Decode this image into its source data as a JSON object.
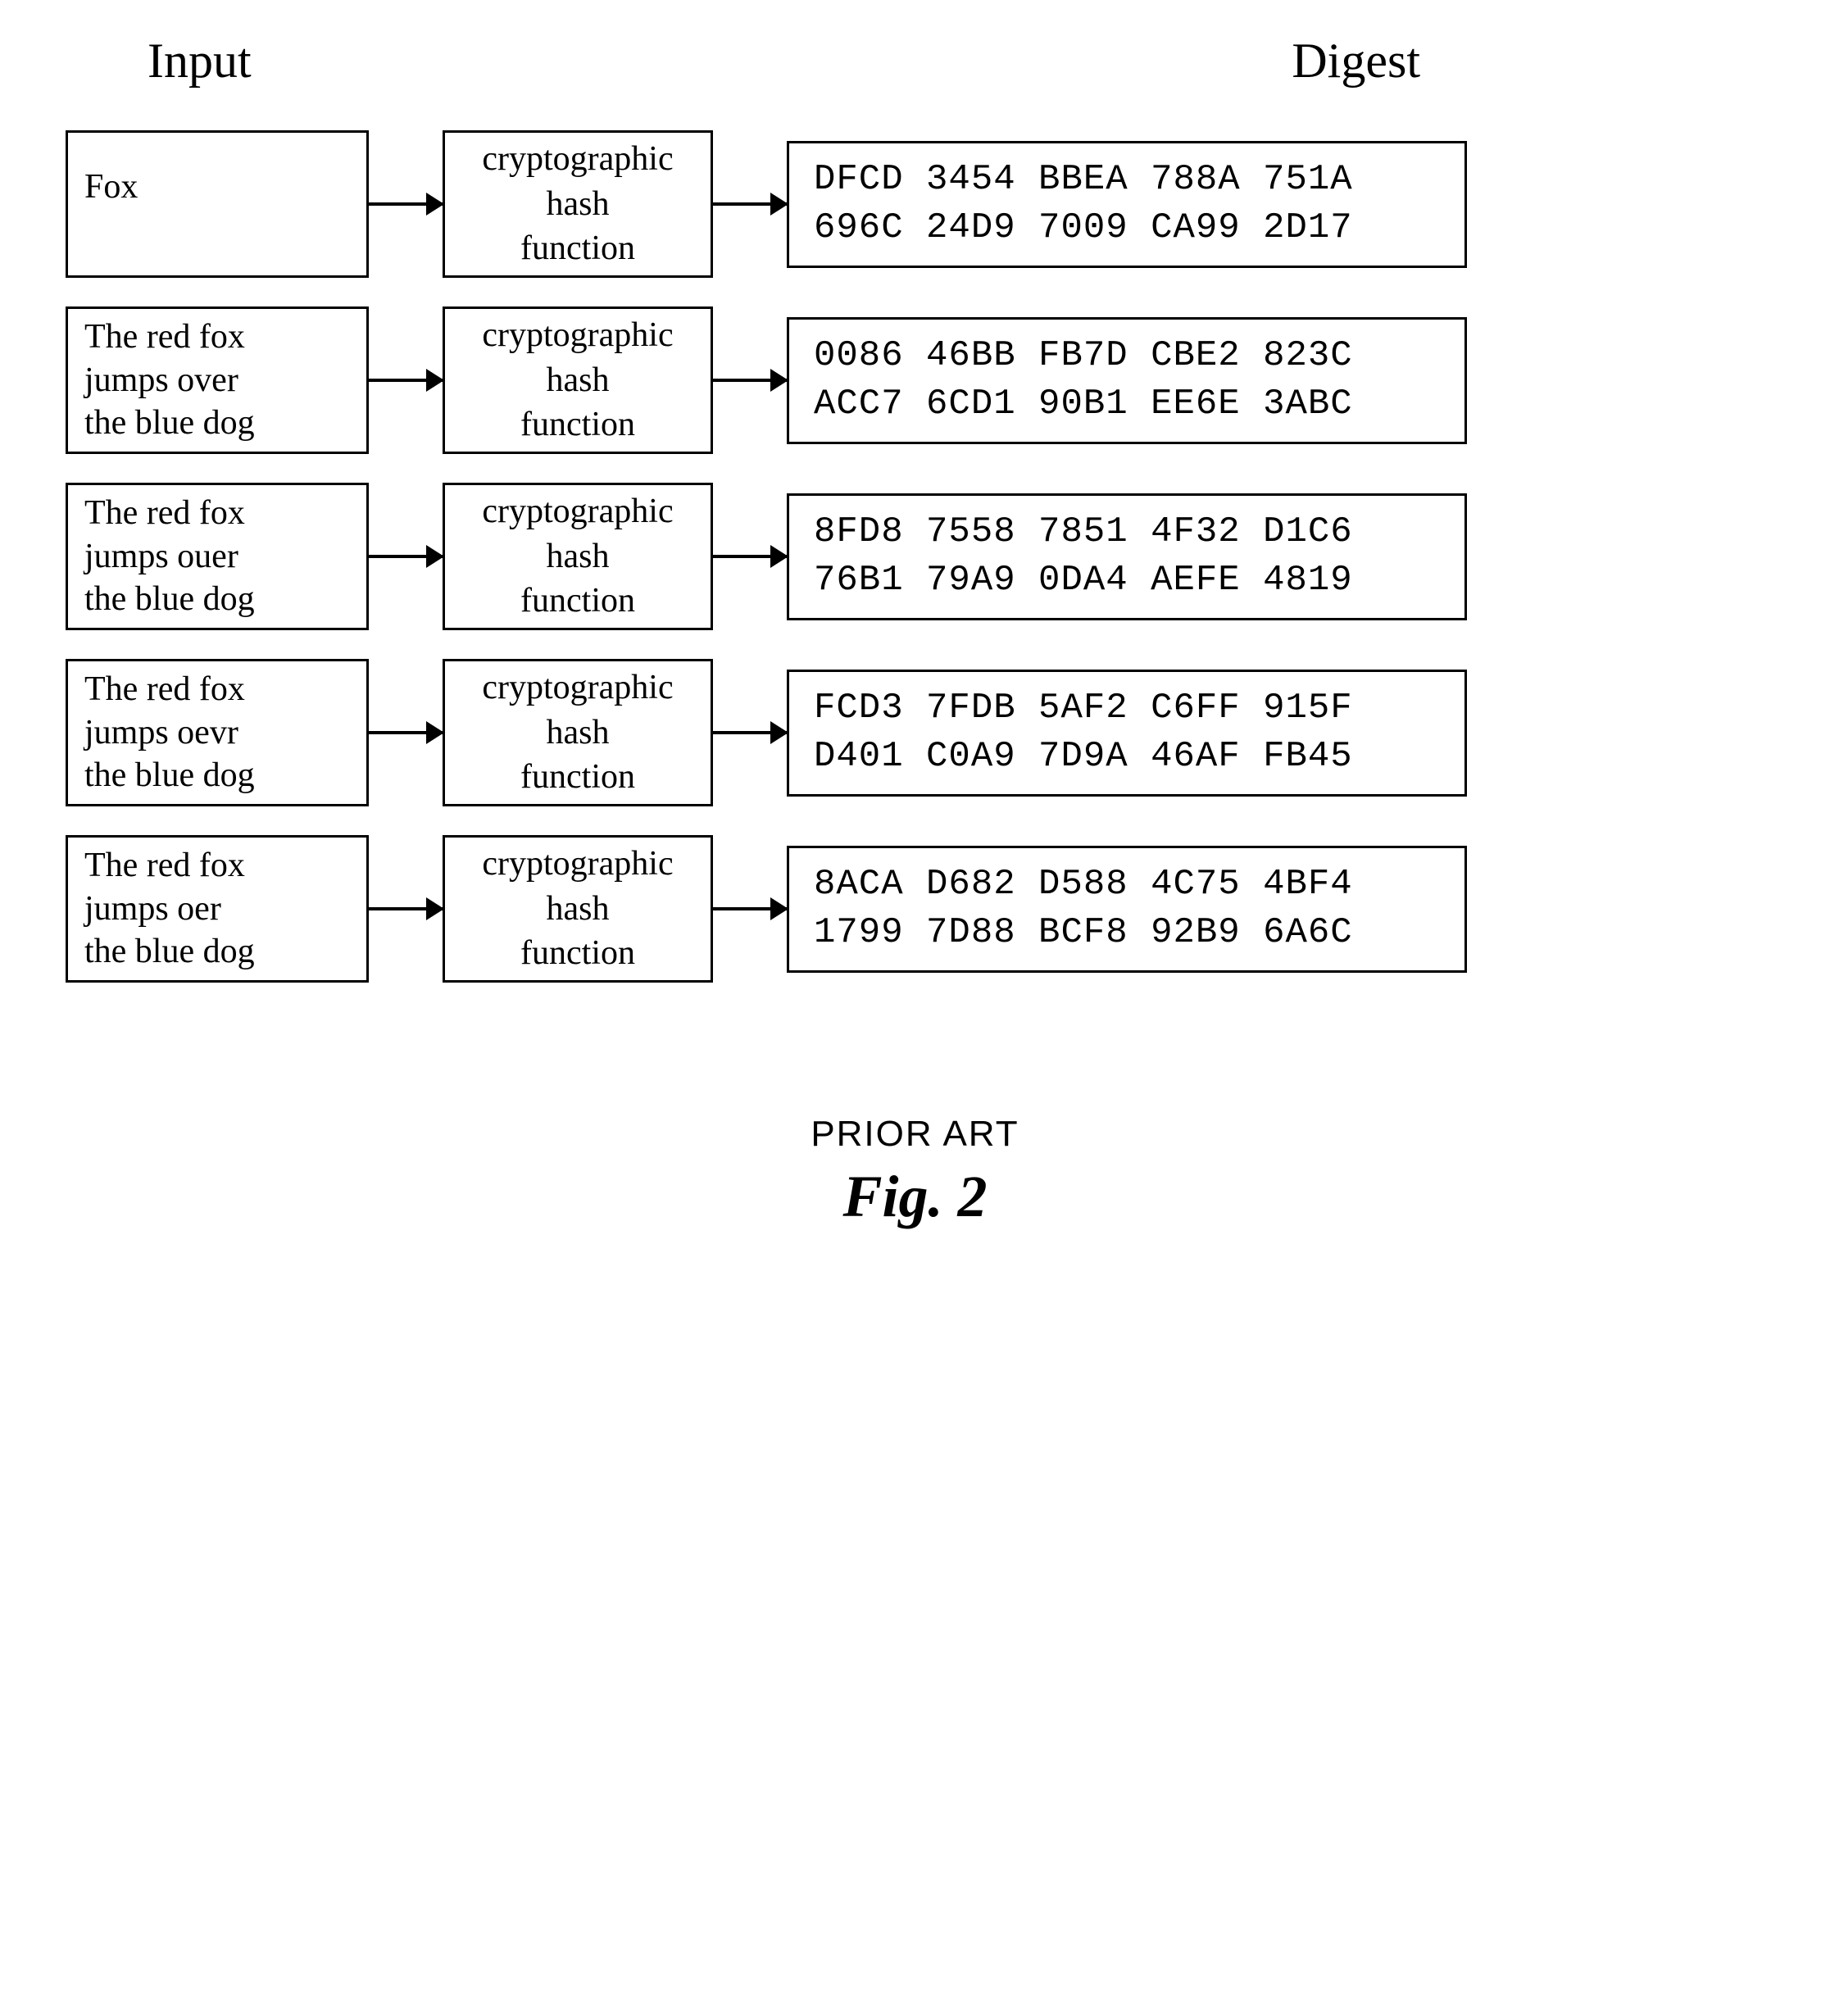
{
  "headers": {
    "input": "Input",
    "digest": "Digest"
  },
  "hash_label": "cryptographic\nhash\nfunction",
  "rows": [
    {
      "input": "Fox",
      "single": true,
      "digest": "DFCD 3454 BBEA 788A 751A\n696C 24D9 7009 CA99 2D17"
    },
    {
      "input": "The red fox\njumps over\nthe blue dog",
      "digest": "0086 46BB FB7D CBE2 823C\nACC7 6CD1 90B1 EE6E 3ABC"
    },
    {
      "input": "The red fox\njumps ouer\nthe blue dog",
      "digest": "8FD8 7558 7851 4F32 D1C6\n76B1 79A9 0DA4 AEFE 4819"
    },
    {
      "input": "The red fox\njumps oevr\nthe blue dog",
      "digest": "FCD3 7FDB 5AF2 C6FF 915F\nD401 C0A9 7D9A 46AF FB45"
    },
    {
      "input": "The red fox\njumps oer\nthe blue dog",
      "digest": "8ACA D682 D588 4C75 4BF4\n1799 7D88 BCF8 92B9 6A6C"
    }
  ],
  "footer": {
    "prior_art": "PRIOR ART",
    "fig": "Fig.  2"
  },
  "styling": {
    "border_color": "#000000",
    "border_width": 3,
    "background_color": "#ffffff",
    "input_box_width": 370,
    "input_box_height": 180,
    "hash_box_width": 330,
    "hash_box_height": 180,
    "digest_box_width": 830,
    "digest_box_height": 155,
    "arrow_width": 90,
    "header_fontsize": 60,
    "body_fontsize": 42,
    "digest_fontsize": 44,
    "fig_fontsize": 72,
    "prior_art_fontsize": 44,
    "input_font": "Times New Roman",
    "digest_font": "Courier New",
    "row_gap": 35
  }
}
